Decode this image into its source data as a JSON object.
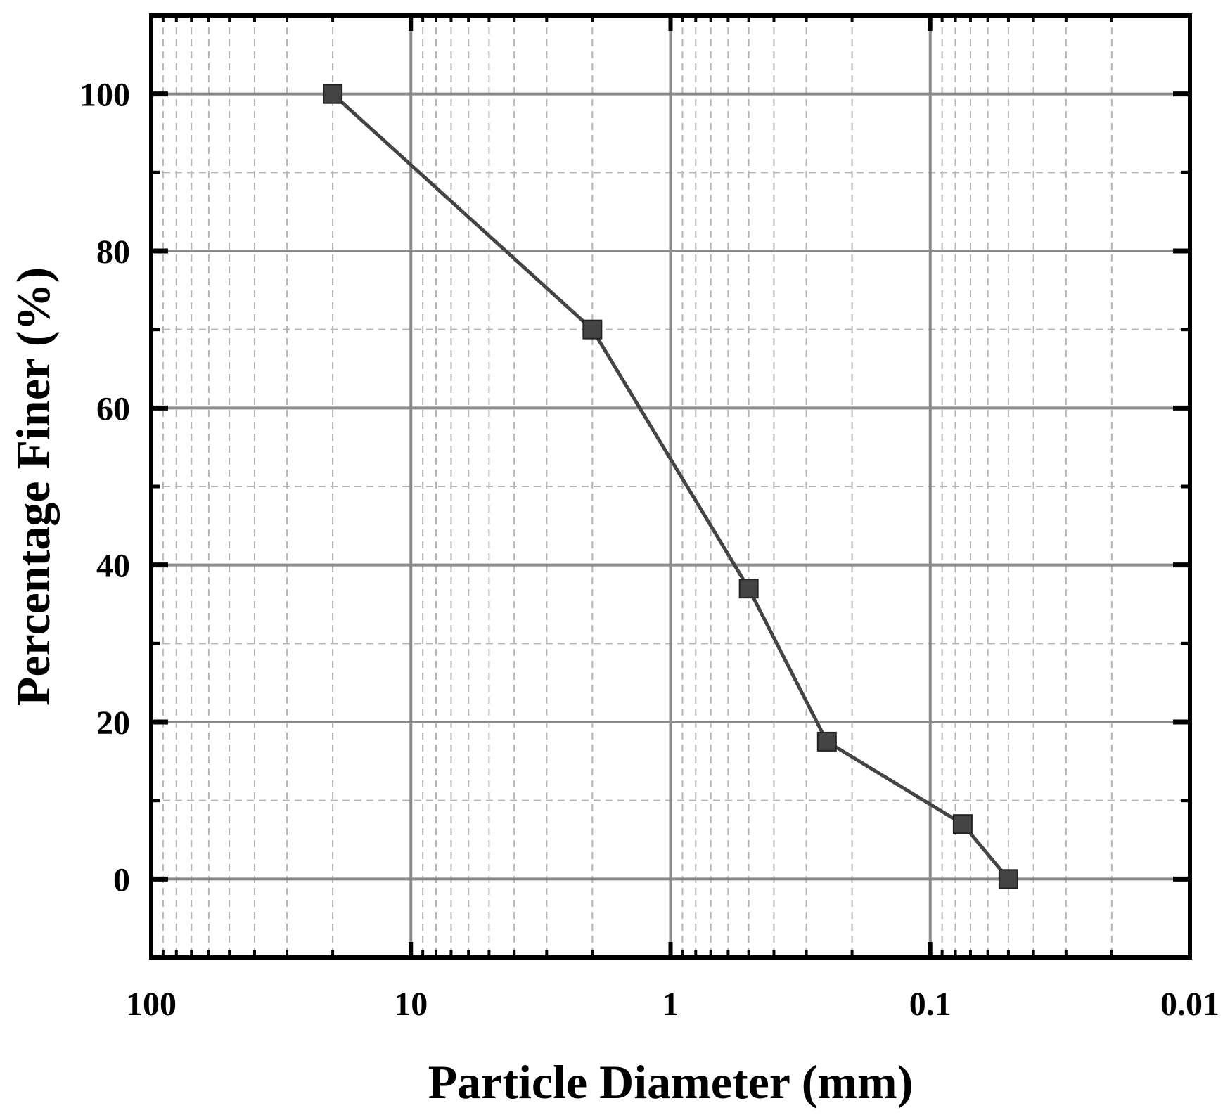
{
  "chart_data": {
    "type": "line",
    "title": "",
    "xlabel": "Particle Diameter (mm)",
    "ylabel": "Percentage Finer (%)",
    "x_scale": "log",
    "x_reversed": true,
    "xlim": [
      100,
      0.01
    ],
    "ylim": [
      -10,
      110
    ],
    "x_ticks": [
      {
        "value": 100,
        "label": "100"
      },
      {
        "value": 10,
        "label": "10"
      },
      {
        "value": 1,
        "label": "1"
      },
      {
        "value": 0.1,
        "label": "0.1"
      },
      {
        "value": 0.01,
        "label": "0.01"
      }
    ],
    "y_ticks": [
      {
        "value": 0,
        "label": "0"
      },
      {
        "value": 20,
        "label": "20"
      },
      {
        "value": 40,
        "label": "40"
      },
      {
        "value": 60,
        "label": "60"
      },
      {
        "value": 80,
        "label": "80"
      },
      {
        "value": 100,
        "label": "100"
      }
    ],
    "grid": {
      "major": "solid",
      "minor": "dashed"
    },
    "legend": "none",
    "series": [
      {
        "marker": "square",
        "color": "#444444",
        "x": [
          20,
          2,
          0.5,
          0.25,
          0.075,
          0.05
        ],
        "y": [
          100,
          70,
          37,
          17.5,
          7,
          0
        ]
      }
    ]
  }
}
